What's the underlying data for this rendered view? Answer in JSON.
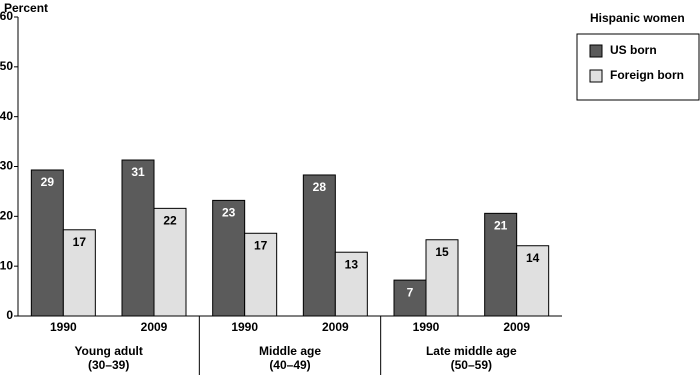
{
  "chart_data": {
    "type": "bar",
    "y_label": "Percent",
    "categories": [
      "1990",
      "2009",
      "1990",
      "2009",
      "1990",
      "2009"
    ],
    "groups": [
      {
        "label": "Young adult",
        "sublabel": "(30–39)"
      },
      {
        "label": "Middle age",
        "sublabel": "(40–49)"
      },
      {
        "label": "Late middle age",
        "sublabel": "(50–59)"
      }
    ],
    "legend_title": "Hispanic women",
    "series": [
      {
        "name": "US born",
        "color": "#5b5b5b",
        "label_color": "#ffffff",
        "values": [
          29.3,
          31.3,
          23.2,
          28.3,
          7.2,
          20.6
        ],
        "value_labels": [
          "29",
          "31",
          "23",
          "28",
          "7",
          "21"
        ]
      },
      {
        "name": "Foreign born",
        "color": "#e0e0e0",
        "label_color": "#000000",
        "values": [
          17.3,
          21.6,
          16.6,
          12.8,
          15.3,
          14.1
        ],
        "value_labels": [
          "17",
          "22",
          "17",
          "13",
          "15",
          "14"
        ]
      }
    ],
    "ylim": [
      0,
      60
    ],
    "yticks": [
      0,
      10,
      20,
      30,
      40,
      50,
      60
    ],
    "grid": false
  }
}
